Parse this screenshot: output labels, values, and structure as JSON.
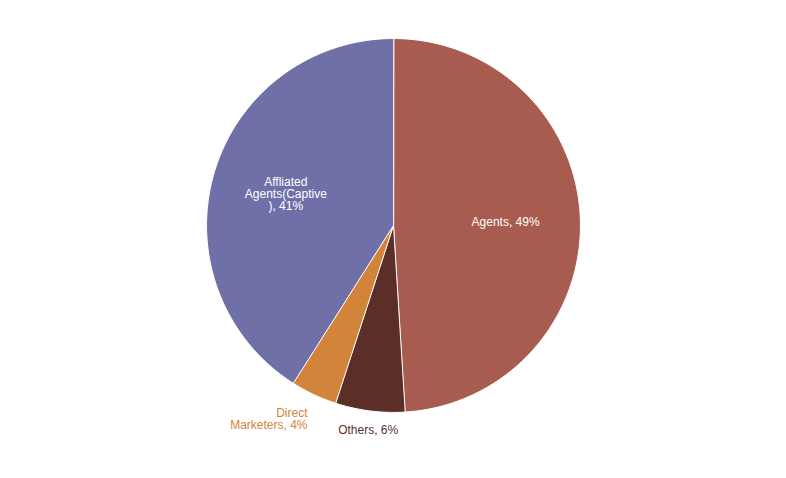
{
  "chart_data": {
    "type": "pie",
    "categories": [
      "Agents, 49%",
      "Others, 6%",
      "Direct\nMarketers, 4%",
      "Affliated\nAgents(Captive\n), 41%"
    ],
    "values": [
      49,
      6,
      4,
      41
    ],
    "colors": [
      "#A85C50",
      "#5C2E28",
      "#D2843A",
      "#7070A8"
    ]
  }
}
